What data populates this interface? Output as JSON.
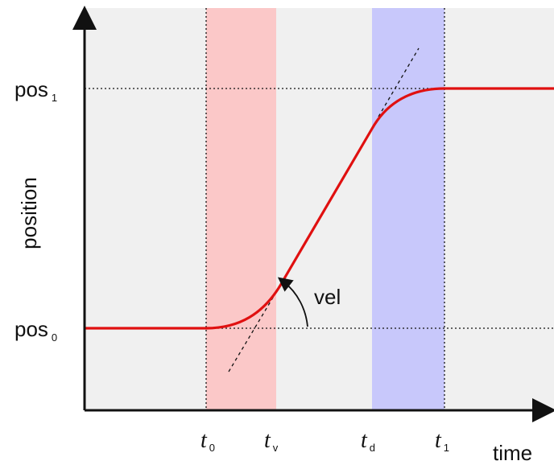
{
  "colors": {
    "plot_background": "#f0f0f0",
    "accel_band": "#fbc8c8",
    "decel_band": "#c8c8fb",
    "curve": "#e01010",
    "guides": "#111111"
  },
  "labels": {
    "y_axis": "position",
    "x_axis": "time",
    "pos0": {
      "main": "pos",
      "sub": "0"
    },
    "pos1": {
      "main": "pos",
      "sub": "1"
    },
    "t0": {
      "main": "t",
      "sub": "0"
    },
    "tv": {
      "main": "t",
      "sub": "v"
    },
    "td": {
      "main": "t",
      "sub": "d"
    },
    "t1": {
      "main": "t",
      "sub": "1"
    },
    "velocity": "vel"
  }
}
